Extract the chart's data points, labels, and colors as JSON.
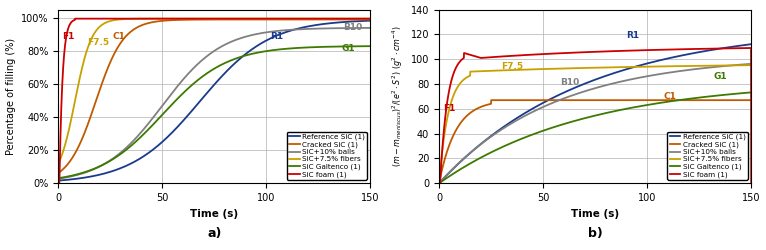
{
  "title_a": "a)",
  "title_b": "b)",
  "ylabel_a": "Percentage of filling (%)",
  "xlabel": "Time (s)",
  "xlim": [
    0,
    150
  ],
  "ylim_a": [
    0,
    1.05
  ],
  "ylim_b": [
    0,
    140
  ],
  "grid_color": "#b0b0b0",
  "legend_entries": [
    "Reference SiC (1)",
    "Cracked SiC (1)",
    "SiC+10% balls",
    "SiC+7.5% fibers",
    "SiC Galtenco (1)",
    "SiC foam (1)"
  ],
  "line_colors": [
    "#1a3a8c",
    "#c05a00",
    "#808080",
    "#c8a000",
    "#3d7a00",
    "#cc0000"
  ],
  "lw": 1.3
}
